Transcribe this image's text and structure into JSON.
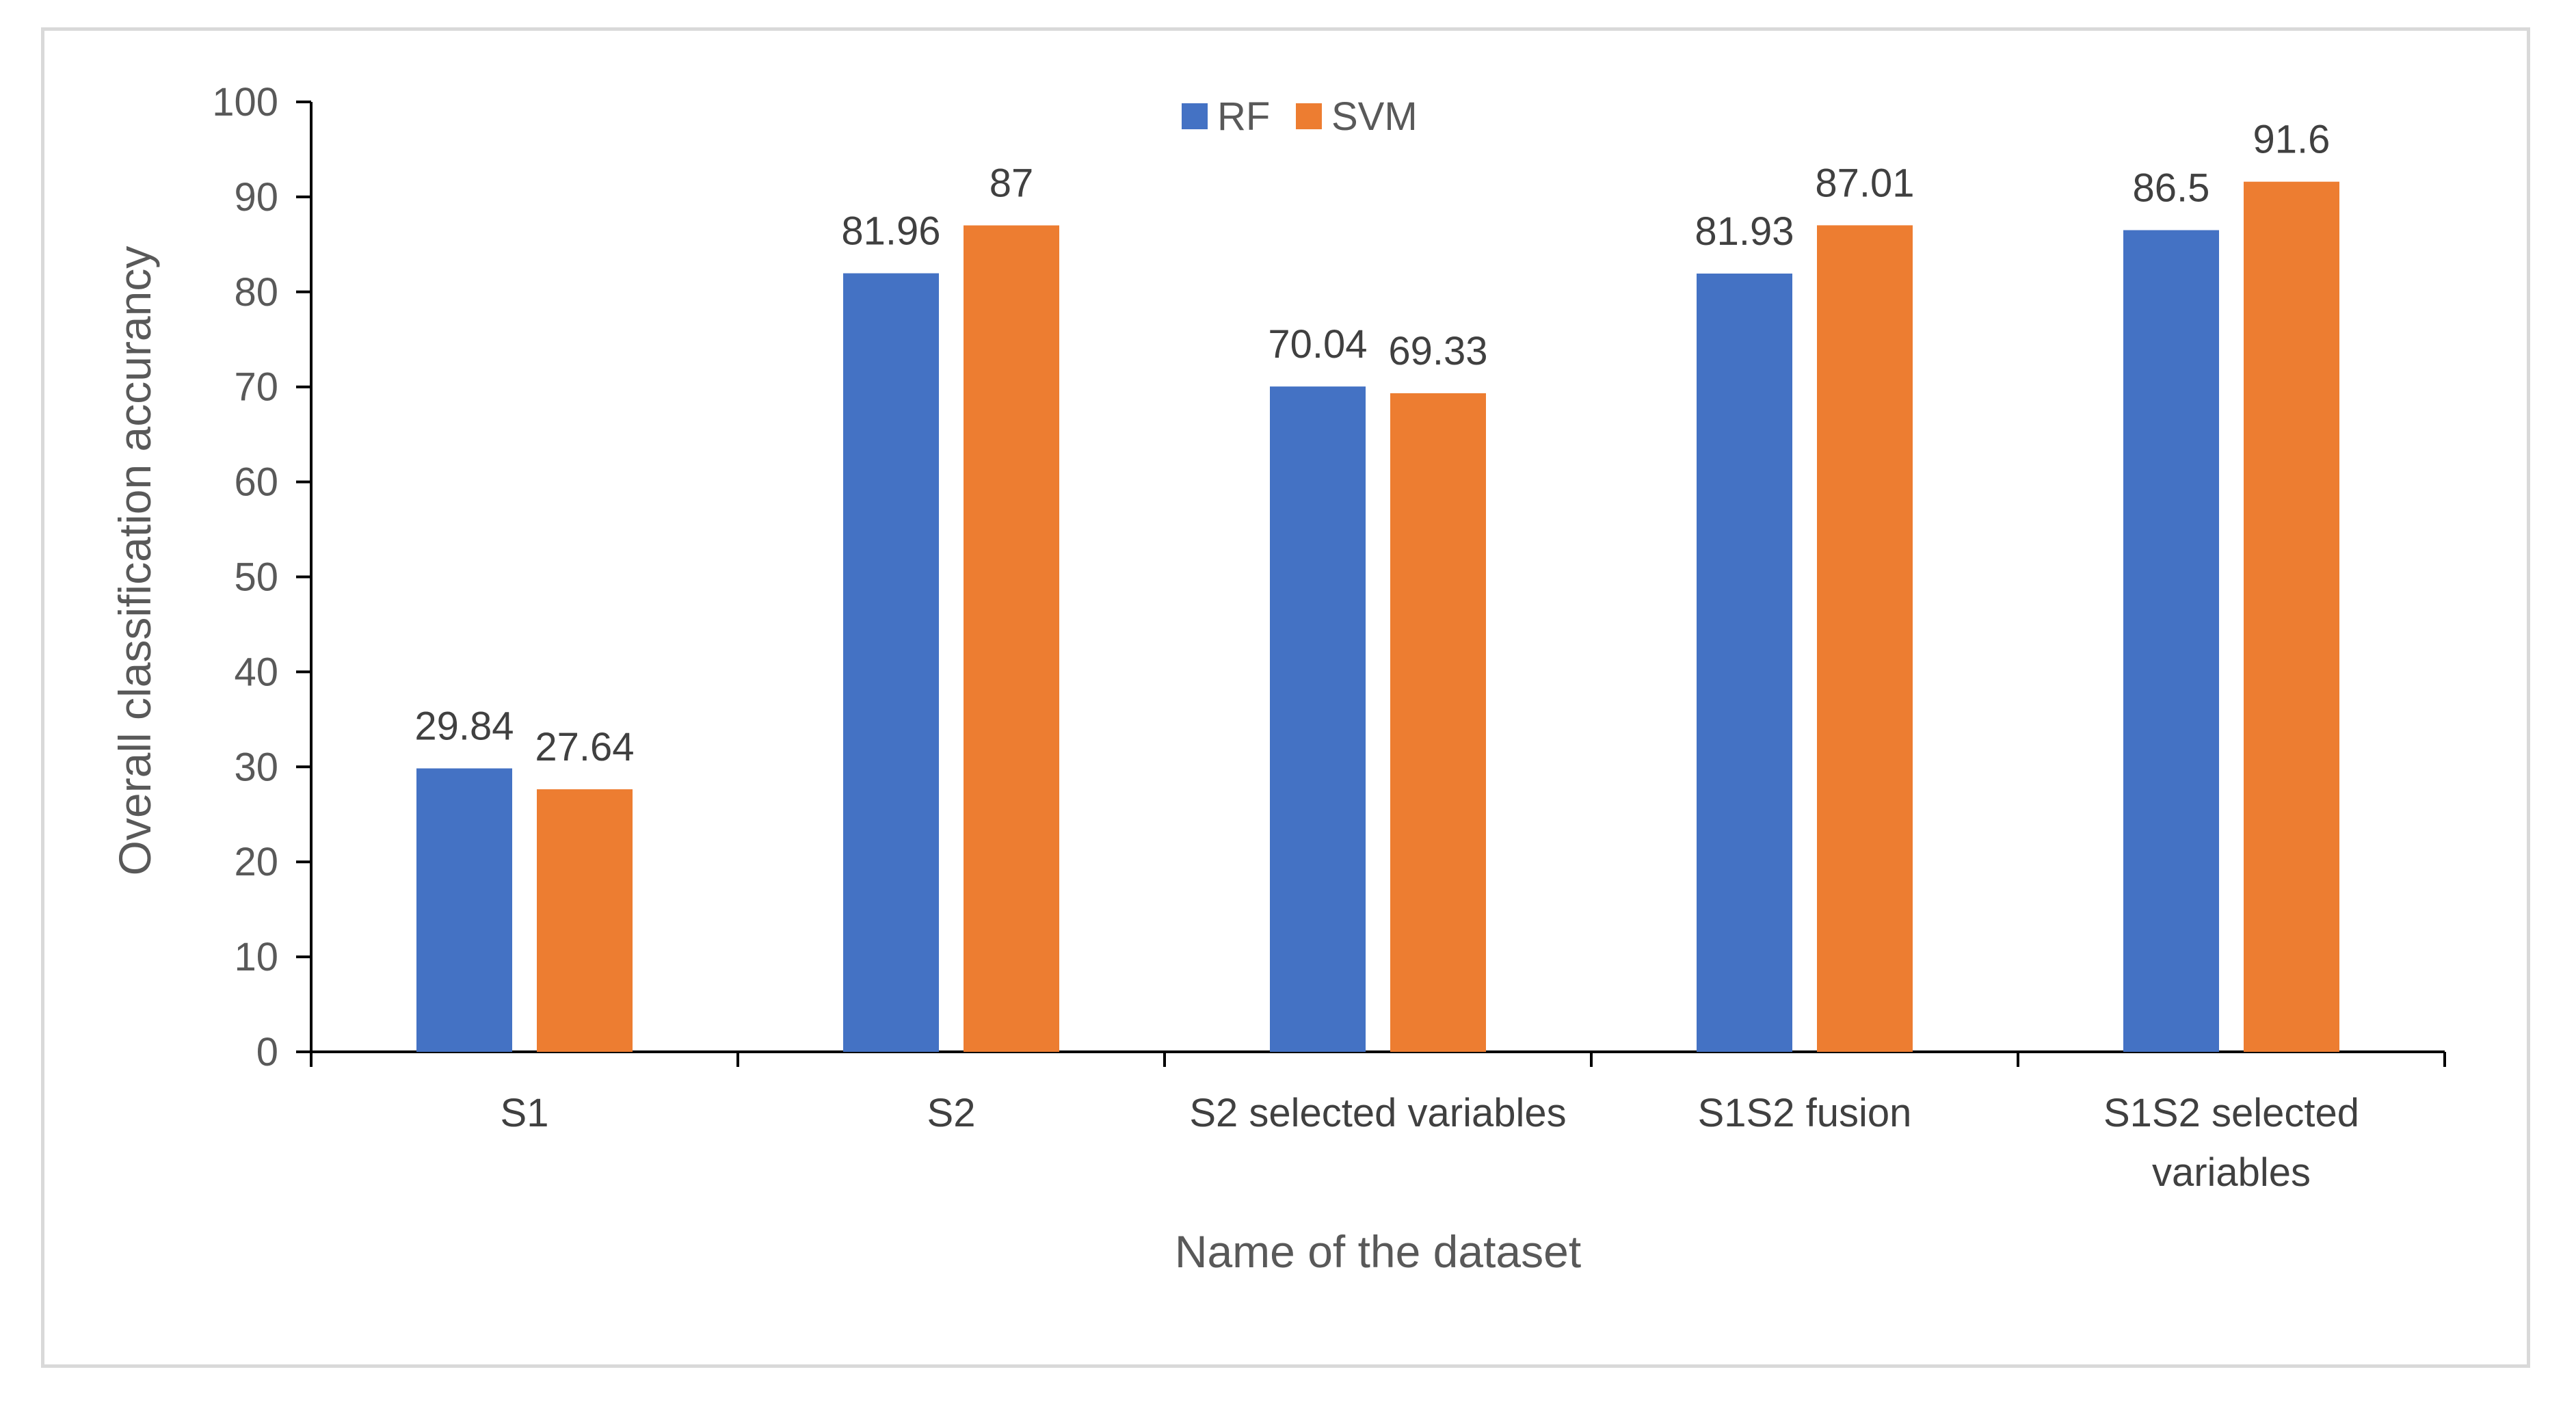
{
  "chart_data": {
    "type": "bar",
    "title": "",
    "xlabel": "Name of the dataset",
    "ylabel": "Overall classification accurancy",
    "ylim": [
      0,
      100
    ],
    "yticks": [
      0,
      10,
      20,
      30,
      40,
      50,
      60,
      70,
      80,
      90,
      100
    ],
    "categories": [
      [
        "S1"
      ],
      [
        "S2"
      ],
      [
        "S2 selected variables"
      ],
      [
        "S1S2 fusion"
      ],
      [
        "S1S2 selected",
        "variables"
      ]
    ],
    "series": [
      {
        "name": "RF",
        "color": "#4472c4",
        "values": [
          29.84,
          81.96,
          70.04,
          81.93,
          86.5
        ]
      },
      {
        "name": "SVM",
        "color": "#ed7d31",
        "values": [
          27.64,
          87,
          69.33,
          87.01,
          91.6
        ]
      }
    ],
    "legend_position": "top-center",
    "grid": false
  }
}
